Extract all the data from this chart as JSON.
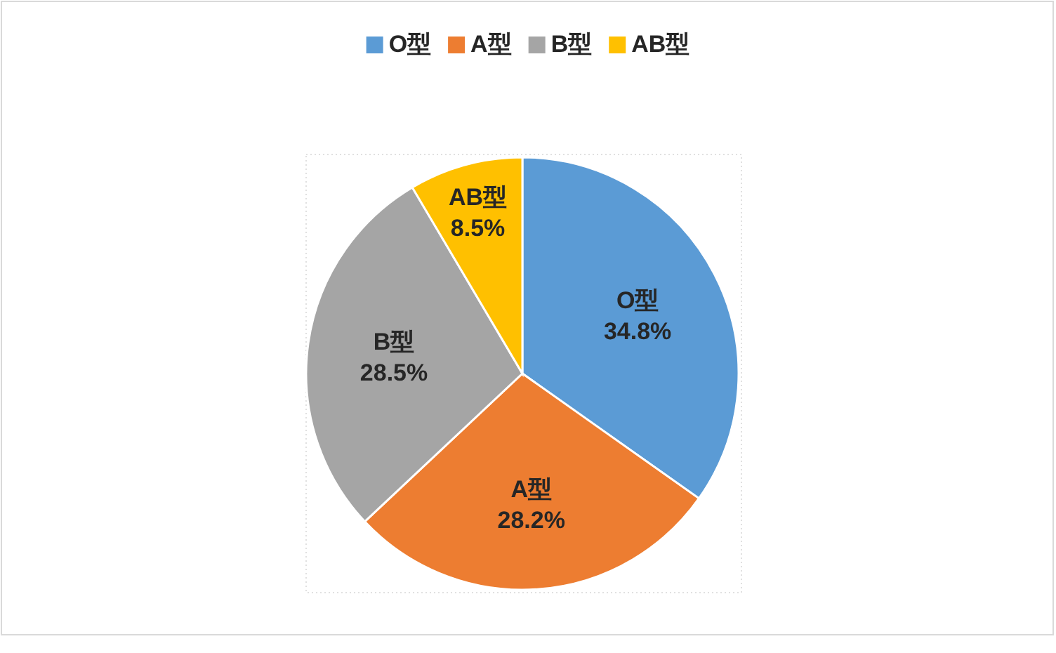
{
  "chart_data": {
    "type": "pie",
    "categories": [
      "O型",
      "A型",
      "B型",
      "AB型"
    ],
    "values": [
      34.8,
      28.2,
      28.5,
      8.5
    ],
    "colors": [
      "#5b9bd5",
      "#ed7d31",
      "#a5a5a5",
      "#ffc000"
    ],
    "value_labels": [
      "34.8%",
      "28.2%",
      "28.5%",
      "8.5%"
    ],
    "legend": "top"
  }
}
